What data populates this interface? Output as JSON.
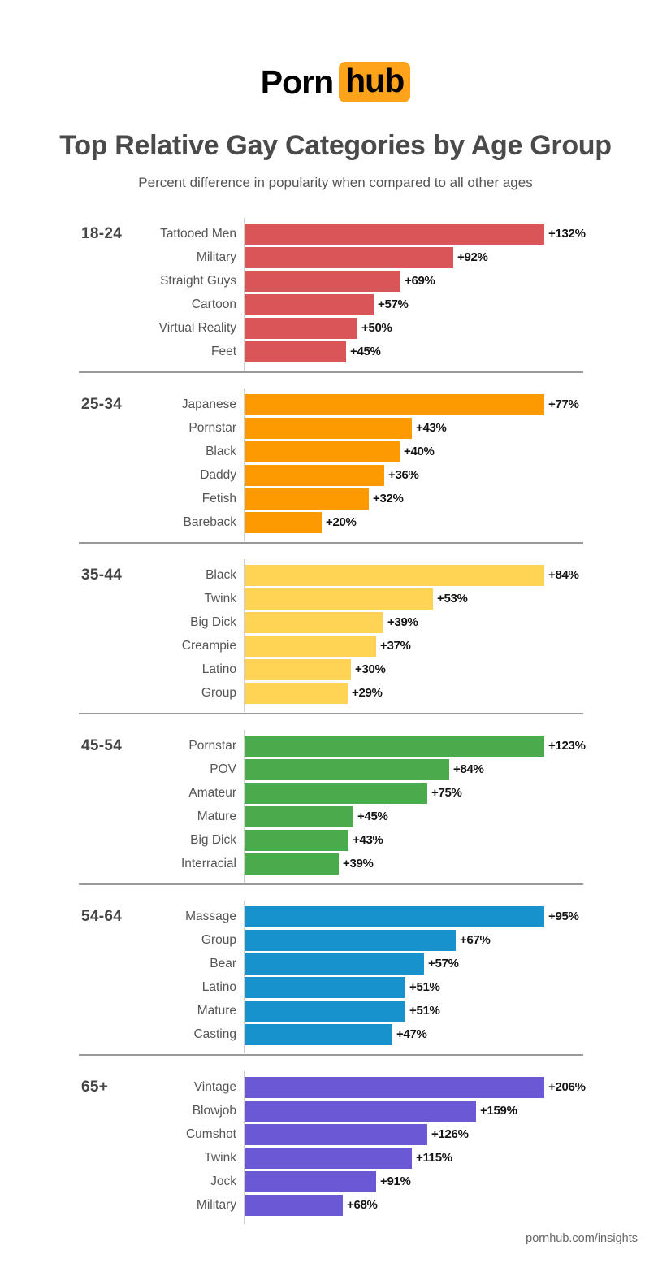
{
  "logo": {
    "text_plain": "Porn",
    "text_badge": "hub",
    "badge_color": "#ffa31a"
  },
  "header": {
    "title": "Top Relative Gay Categories by Age Group",
    "subtitle": "Percent difference in popularity when compared to all other ages"
  },
  "chart_data": {
    "type": "bar",
    "orientation": "horizontal",
    "unit": "percent difference",
    "value_prefix": "+",
    "value_suffix": "%",
    "bars_scaled_per_group": true,
    "groups": [
      {
        "age_group": "18-24",
        "color": "#d95558",
        "bars": [
          {
            "category": "Tattooed Men",
            "value": 132,
            "display": "+132%"
          },
          {
            "category": "Military",
            "value": 92,
            "display": "+92%"
          },
          {
            "category": "Straight Guys",
            "value": 69,
            "display": "+69%"
          },
          {
            "category": "Cartoon",
            "value": 57,
            "display": "+57%"
          },
          {
            "category": "Virtual Reality",
            "value": 50,
            "display": "+50%"
          },
          {
            "category": "Feet",
            "value": 45,
            "display": "+45%"
          }
        ]
      },
      {
        "age_group": "25-34",
        "color": "#fd9a01",
        "bars": [
          {
            "category": "Japanese",
            "value": 77,
            "display": "+77%"
          },
          {
            "category": "Pornstar",
            "value": 43,
            "display": "+43%"
          },
          {
            "category": "Black",
            "value": 40,
            "display": "+40%"
          },
          {
            "category": "Daddy",
            "value": 36,
            "display": "+36%"
          },
          {
            "category": "Fetish",
            "value": 32,
            "display": "+32%"
          },
          {
            "category": "Bareback",
            "value": 20,
            "display": "+20%"
          }
        ]
      },
      {
        "age_group": "35-44",
        "color": "#ffd354",
        "bars": [
          {
            "category": "Black",
            "value": 84,
            "display": "+84%"
          },
          {
            "category": "Twink",
            "value": 53,
            "display": "+53%"
          },
          {
            "category": "Big Dick",
            "value": 39,
            "display": "+39%"
          },
          {
            "category": "Creampie",
            "value": 37,
            "display": "+37%"
          },
          {
            "category": "Latino",
            "value": 30,
            "display": "+30%"
          },
          {
            "category": "Group",
            "value": 29,
            "display": "+29%"
          }
        ]
      },
      {
        "age_group": "45-54",
        "color": "#4aab4d",
        "bars": [
          {
            "category": "Pornstar",
            "value": 123,
            "display": "+123%"
          },
          {
            "category": "POV",
            "value": 84,
            "display": "+84%"
          },
          {
            "category": "Amateur",
            "value": 75,
            "display": "+75%"
          },
          {
            "category": "Mature",
            "value": 45,
            "display": "+45%"
          },
          {
            "category": "Big Dick",
            "value": 43,
            "display": "+43%"
          },
          {
            "category": "Interracial",
            "value": 39,
            "display": "+39%"
          }
        ]
      },
      {
        "age_group": "54-64",
        "color": "#1792cd",
        "bars": [
          {
            "category": "Massage",
            "value": 95,
            "display": "+95%"
          },
          {
            "category": "Group",
            "value": 67,
            "display": "+67%"
          },
          {
            "category": "Bear",
            "value": 57,
            "display": "+57%"
          },
          {
            "category": "Latino",
            "value": 51,
            "display": "+51%"
          },
          {
            "category": "Mature",
            "value": 51,
            "display": "+51%"
          },
          {
            "category": "Casting",
            "value": 47,
            "display": "+47%"
          }
        ]
      },
      {
        "age_group": "65+",
        "color": "#6a58d5",
        "bars": [
          {
            "category": "Vintage",
            "value": 206,
            "display": "+206%"
          },
          {
            "category": "Blowjob",
            "value": 159,
            "display": "+159%"
          },
          {
            "category": "Cumshot",
            "value": 126,
            "display": "+126%"
          },
          {
            "category": "Twink",
            "value": 115,
            "display": "+115%"
          },
          {
            "category": "Jock",
            "value": 91,
            "display": "+91%"
          },
          {
            "category": "Military",
            "value": 68,
            "display": "+68%"
          }
        ]
      }
    ]
  },
  "footer": {
    "text": "pornhub.com/insights"
  }
}
